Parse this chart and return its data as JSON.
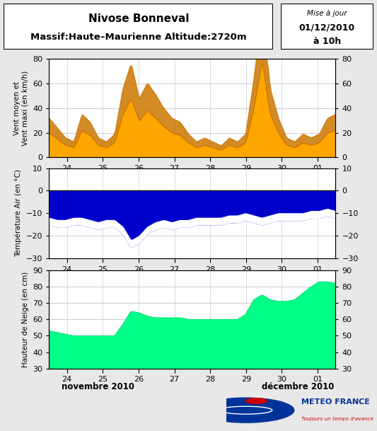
{
  "title_line1": "Nivose Bonneval",
  "title_line2": "Massif:Haute–Maurienne Altitude:2720m",
  "update_line1": "Mise à jour",
  "update_line2": "01/12/2010",
  "update_line3": "à 10h",
  "wind_ylabel": "Vent moyen et\nVent maxi (en km/h)",
  "temp_ylabel": "Température Air (en °C)",
  "snow_ylabel": "Hauteur de Neige (en cm)",
  "xlabel_left": "novembre 2010",
  "xlabel_right": "décembre 2010",
  "wind_ylim": [
    0,
    80
  ],
  "temp_ylim": [
    -30,
    10
  ],
  "snow_ylim": [
    30,
    90
  ],
  "wind_yticks": [
    0,
    20,
    40,
    60,
    80
  ],
  "temp_yticks": [
    -30,
    -20,
    -10,
    0,
    10
  ],
  "snow_yticks": [
    30,
    40,
    50,
    60,
    70,
    80,
    90
  ],
  "x_tick_labels": [
    "24",
    "25",
    "26",
    "27",
    "28",
    "29",
    "30",
    "01"
  ],
  "bg_color": "#e8e8e8",
  "plot_bg": "#ffffff",
  "wind_fill_color": "#FFA500",
  "wind_maxi_color": "#CC7700",
  "temp_fill_color": "#0000CC",
  "snow_fill_color": "#00FF88",
  "snow_line_color": "#00CC66",
  "grid_color": "#cccccc",
  "meteo_france_blue": "#003399",
  "meteo_france_red": "#CC0000"
}
